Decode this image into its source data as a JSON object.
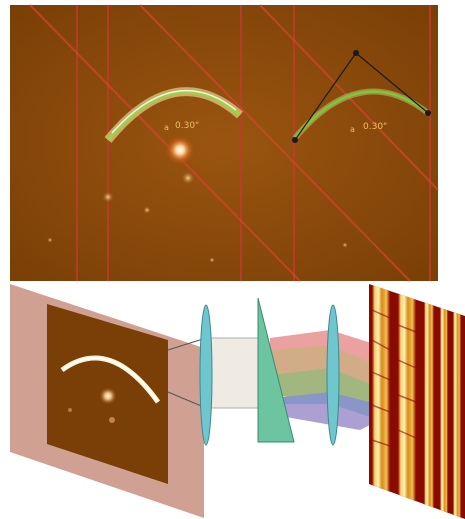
{
  "top_panel": {
    "left_arc_label": "0.30\"",
    "right_arc_label": "0.30\"",
    "left_label_prefix": "a",
    "right_label_prefix": "a"
  },
  "colors": {
    "sky_background": "#8a4a0a",
    "arc": "#9bd24a",
    "arc_glow": "#fff7c0",
    "slit_line": "#c33a2c",
    "image_slicer": "#b5806a",
    "lens": "#6fc6cc",
    "prism": "#6cc4a0",
    "spectrum_dark": "#8b0a00",
    "spectrum_bright": "#f6d070"
  }
}
